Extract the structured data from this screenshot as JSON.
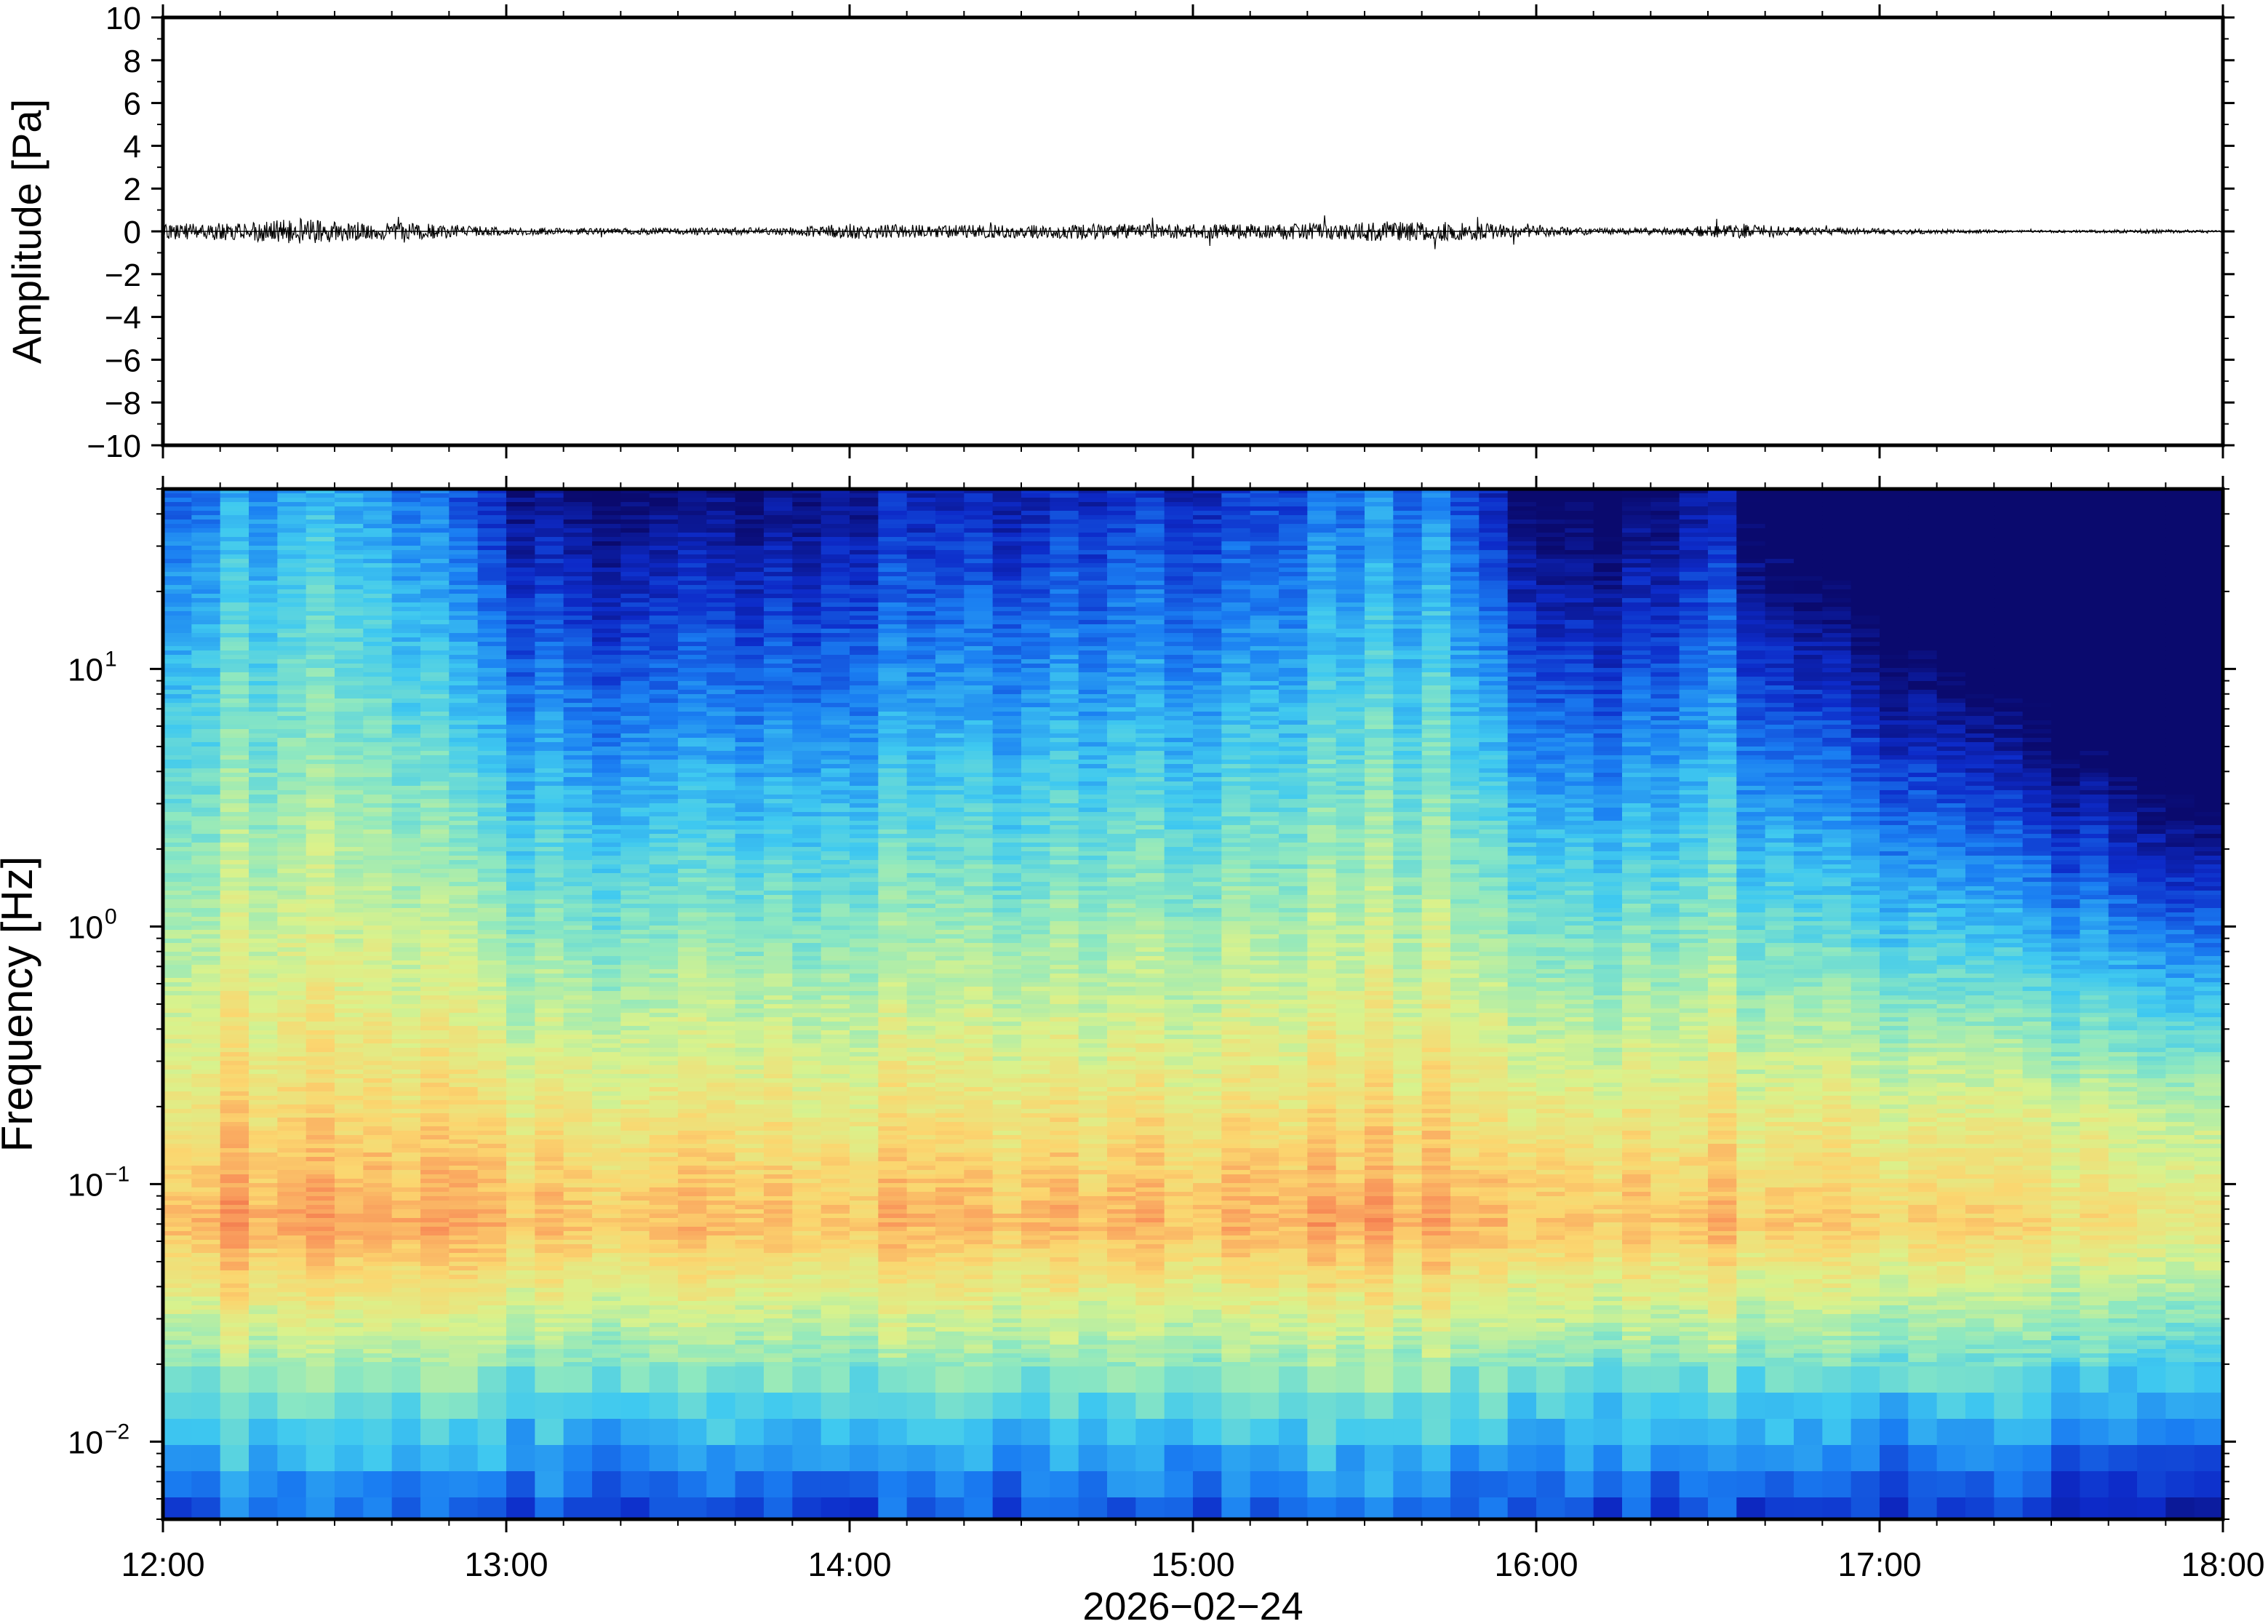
{
  "chart_data": [
    {
      "type": "line",
      "panel": "waveform",
      "ylabel": "Amplitude [Pa]",
      "ylim": [
        -10,
        10
      ],
      "yticks": [
        {
          "value": 10,
          "label": "10"
        },
        {
          "value": 8,
          "label": "8"
        },
        {
          "value": 6,
          "label": "6"
        },
        {
          "value": 4,
          "label": "4"
        },
        {
          "value": 2,
          "label": "2"
        },
        {
          "value": 0,
          "label": "0"
        },
        {
          "value": -2,
          "label": "−2"
        },
        {
          "value": -4,
          "label": "−4"
        },
        {
          "value": -6,
          "label": "−6"
        },
        {
          "value": -8,
          "label": "−8"
        },
        {
          "value": -10,
          "label": "−10"
        }
      ],
      "x_range": [
        "12:00",
        "18:00"
      ],
      "envelope": {
        "hours": [
          12.0,
          12.2,
          12.4,
          12.6,
          12.8,
          13.0,
          13.2,
          13.4,
          13.6,
          13.8,
          14.0,
          14.2,
          14.4,
          14.6,
          14.8,
          15.0,
          15.2,
          15.4,
          15.6,
          15.8,
          16.0,
          16.2,
          16.4,
          16.6,
          16.8,
          17.0,
          17.2,
          17.4,
          17.6,
          17.8,
          18.0
        ],
        "amplitude": [
          0.3,
          0.35,
          0.5,
          0.35,
          0.3,
          0.15,
          0.12,
          0.12,
          0.15,
          0.15,
          0.3,
          0.25,
          0.25,
          0.28,
          0.3,
          0.28,
          0.3,
          0.35,
          0.4,
          0.35,
          0.2,
          0.12,
          0.15,
          0.3,
          0.15,
          0.12,
          0.08,
          0.05,
          0.05,
          0.08,
          0.04
        ]
      }
    },
    {
      "type": "heatmap",
      "panel": "spectrogram",
      "ylabel": "Frequency [Hz]",
      "yscale": "log",
      "ylim": [
        0.005,
        50
      ],
      "yticks": [
        {
          "value": 0.01,
          "base": "10",
          "exp": "−2"
        },
        {
          "value": 0.1,
          "base": "10",
          "exp": "−1"
        },
        {
          "value": 1,
          "base": "10",
          "exp": "0"
        },
        {
          "value": 10,
          "base": "10",
          "exp": "1"
        }
      ],
      "colormap": [
        "#0a0a6e",
        "#0d2bc9",
        "#1a7ef2",
        "#3fc9f0",
        "#8ee8c0",
        "#d9f28c",
        "#fbd66f",
        "#f9955a",
        "#e8503c"
      ],
      "time_hours": [
        12.0,
        12.25,
        12.5,
        12.75,
        13.0,
        13.25,
        13.5,
        13.75,
        14.0,
        14.25,
        14.5,
        14.75,
        15.0,
        15.25,
        15.5,
        15.75,
        16.0,
        16.25,
        16.5,
        16.75,
        17.0,
        17.25,
        17.5,
        17.75,
        18.0
      ],
      "relative_level": [
        0.85,
        0.9,
        0.95,
        0.85,
        0.7,
        0.65,
        0.65,
        0.65,
        0.7,
        0.72,
        0.72,
        0.75,
        0.75,
        0.78,
        0.85,
        0.85,
        0.6,
        0.6,
        0.72,
        0.55,
        0.5,
        0.45,
        0.4,
        0.35,
        0.3
      ]
    }
  ],
  "xaxis": {
    "ticks": [
      {
        "hour": 12,
        "label": "12:00"
      },
      {
        "hour": 13,
        "label": "13:00"
      },
      {
        "hour": 14,
        "label": "14:00"
      },
      {
        "hour": 15,
        "label": "15:00"
      },
      {
        "hour": 16,
        "label": "16:00"
      },
      {
        "hour": 17,
        "label": "17:00"
      },
      {
        "hour": 18,
        "label": "18:00"
      }
    ],
    "xlabel": "2026−02−24"
  }
}
